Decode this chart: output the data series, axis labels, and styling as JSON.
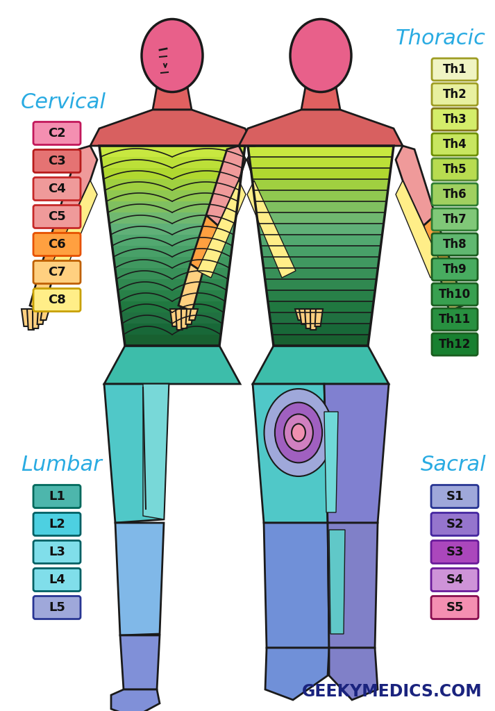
{
  "bg_color": "#ffffff",
  "title_color": "#29abe2",
  "cervical_title": "Cervical",
  "cervical_labels": [
    "C2",
    "C3",
    "C4",
    "C5",
    "C6",
    "C7",
    "C8"
  ],
  "cervical_colors": [
    "#f48fb1",
    "#e57373",
    "#ef9a9a",
    "#ef9a9a",
    "#ffa040",
    "#ffd080",
    "#ffee88"
  ],
  "cervical_border_colors": [
    "#c2185b",
    "#b71c1c",
    "#c62828",
    "#c62828",
    "#e65100",
    "#bf6000",
    "#c8a000"
  ],
  "thoracic_title": "Thoracic",
  "thoracic_labels": [
    "Th1",
    "Th2",
    "Th3",
    "Th4",
    "Th5",
    "Th6",
    "Th7",
    "Th8",
    "Th9",
    "Th10",
    "Th11",
    "Th12"
  ],
  "thoracic_colors": [
    "#f0f4c3",
    "#e8f0a0",
    "#d4ed6a",
    "#c8e660",
    "#b8dc50",
    "#a0d060",
    "#80c878",
    "#60b870",
    "#48ac60",
    "#38a050",
    "#289040",
    "#188030"
  ],
  "thoracic_border_colors": [
    "#9e9d24",
    "#9e9d24",
    "#827717",
    "#6d8f00",
    "#558b2f",
    "#2e7d32",
    "#2e7d32",
    "#1b5e20",
    "#1b5e20",
    "#1b5e20",
    "#1b5e20",
    "#1b5e20"
  ],
  "lumbar_title": "Lumbar",
  "lumbar_labels": [
    "L1",
    "L2",
    "L3",
    "L4",
    "L5"
  ],
  "lumbar_colors": [
    "#4db6ac",
    "#4dd0e1",
    "#80deea",
    "#80deea",
    "#9fa8da"
  ],
  "lumbar_border_colors": [
    "#00695c",
    "#006064",
    "#006064",
    "#006064",
    "#283593"
  ],
  "sacral_title": "Sacral",
  "sacral_labels": [
    "S1",
    "S2",
    "S3",
    "S4",
    "S5"
  ],
  "sacral_colors": [
    "#9fa8da",
    "#9575cd",
    "#ab47bc",
    "#ce93d8",
    "#f48fb1"
  ],
  "sacral_border_colors": [
    "#283593",
    "#4527a0",
    "#6a1b9a",
    "#6a1b9a",
    "#880e4f"
  ],
  "watermark": "GEEKYMEDICS.COM",
  "body_outline": "#1a1a1a",
  "col_head": "#e8608a",
  "col_neck_c3": "#e06060",
  "col_neck_c4": "#e06060",
  "col_shoulder_c4": "#e06060",
  "col_torso_top": "#d4ed6a",
  "col_torso_bot": "#48ac60",
  "col_arm_upper": "#ef9a9a",
  "col_arm_lower_c6": "#ffa040",
  "col_hand_c78": "#ffd080",
  "col_pelvis_l1": "#4db6ac",
  "col_thigh_l23": "#70d8d8",
  "col_shin_l45": "#80a8e8",
  "col_shin_s1": "#9fa8da",
  "col_sacral_outer": "#80b8e8",
  "col_sacral_mid1": "#9090d8",
  "col_sacral_mid2": "#a060c0",
  "col_sacral_inner1": "#d080c0",
  "col_sacral_inner2": "#f090b0"
}
